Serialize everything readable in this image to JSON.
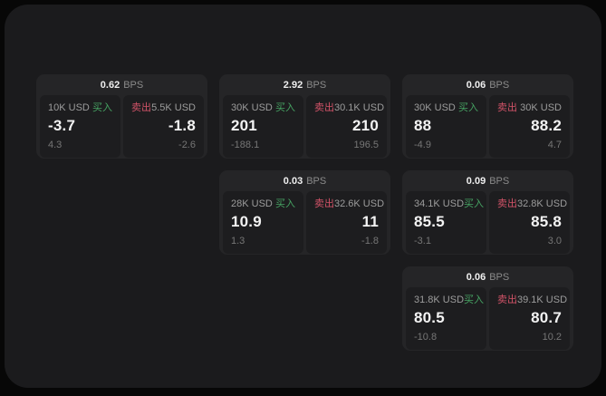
{
  "labels": {
    "buy": "买入",
    "sell": "卖出",
    "unit": "BPS"
  },
  "colors": {
    "window_bg": "#1b1b1d",
    "card_bg": "#252527",
    "panel_bg": "#1d1d1f",
    "buy_accent": "#46a363",
    "sell_accent": "#d25368"
  },
  "cards": [
    {
      "spread": "0.62",
      "buy": {
        "amount": "10K USD",
        "price": "-3.7",
        "delta": "4.3"
      },
      "sell": {
        "amount": "5.5K USD",
        "price": "-1.8",
        "delta": "-2.6"
      }
    },
    {
      "spread": "2.92",
      "buy": {
        "amount": "30K USD",
        "price": "201",
        "delta": "-188.1"
      },
      "sell": {
        "amount": "30.1K USD",
        "price": "210",
        "delta": "196.5"
      }
    },
    {
      "spread": "0.06",
      "buy": {
        "amount": "30K USD",
        "price": "88",
        "delta": "-4.9"
      },
      "sell": {
        "amount": "30K USD",
        "price": "88.2",
        "delta": "4.7"
      }
    },
    {
      "spread": "0.03",
      "buy": {
        "amount": "28K USD",
        "price": "10.9",
        "delta": "1.3"
      },
      "sell": {
        "amount": "32.6K USD",
        "price": "11",
        "delta": "-1.8"
      }
    },
    {
      "spread": "0.09",
      "buy": {
        "amount": "34.1K USD",
        "price": "85.5",
        "delta": "-3.1"
      },
      "sell": {
        "amount": "32.8K USD",
        "price": "85.8",
        "delta": "3.0"
      }
    },
    {
      "spread": "0.06",
      "buy": {
        "amount": "31.8K USD",
        "price": "80.5",
        "delta": "-10.8"
      },
      "sell": {
        "amount": "39.1K USD",
        "price": "80.7",
        "delta": "10.2"
      }
    }
  ]
}
